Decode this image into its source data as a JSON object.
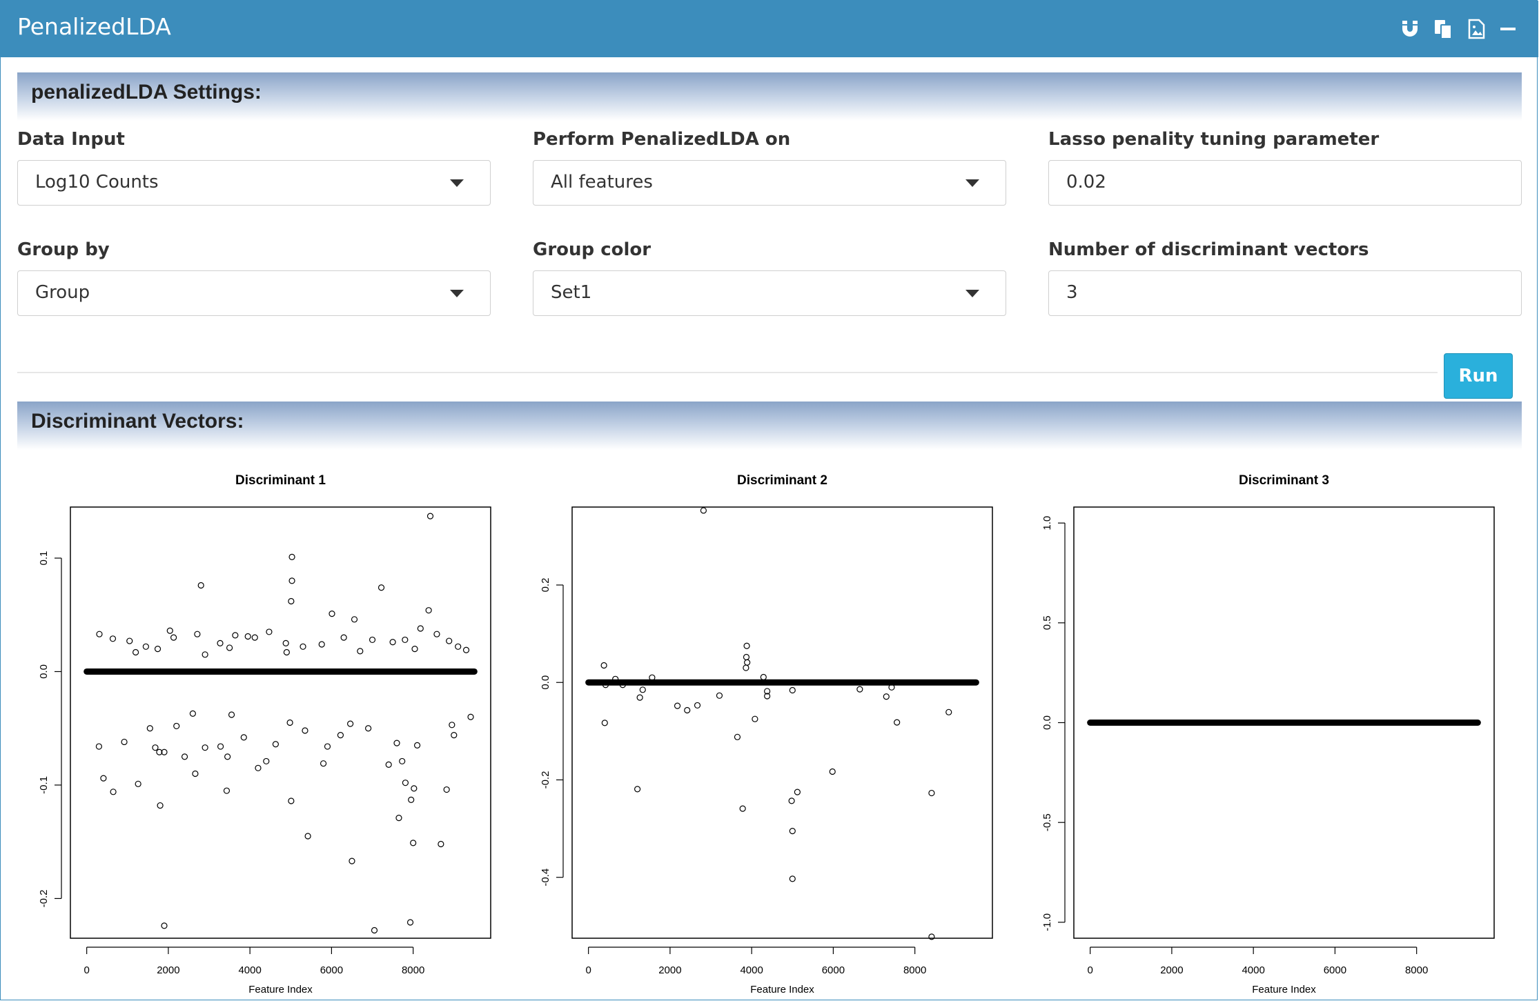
{
  "app": {
    "title": "PenalizedLDA"
  },
  "toolbar": {
    "icons": [
      "magnet-icon",
      "copy-icon",
      "image-icon",
      "minimize-icon"
    ]
  },
  "settings": {
    "heading": "penalizedLDA Settings:",
    "data_input": {
      "label": "Data Input",
      "value": "Log10 Counts"
    },
    "perform_on": {
      "label": "Perform PenalizedLDA on",
      "value": "All features"
    },
    "lasso": {
      "label": "Lasso penality tuning parameter",
      "value": "0.02"
    },
    "group_by": {
      "label": "Group by",
      "value": "Group"
    },
    "group_color": {
      "label": "Group color",
      "value": "Set1"
    },
    "num_vectors": {
      "label": "Number of discriminant vectors",
      "value": "3"
    },
    "run_label": "Run"
  },
  "results": {
    "heading": "Discriminant Vectors:"
  },
  "chart_data": [
    {
      "type": "scatter",
      "title": "Discriminant 1",
      "xlabel": "Feature Index",
      "ylabel": "",
      "xlim": [
        -400,
        9900
      ],
      "ylim": [
        -0.235,
        0.145
      ],
      "xticks": [
        0,
        2000,
        4000,
        6000,
        8000
      ],
      "yticks": [
        -0.2,
        -0.1,
        0.0,
        0.1
      ],
      "ytick_labels": [
        "-0.2",
        "-0.1",
        "0.0",
        "0.1"
      ],
      "baseline": {
        "x_range": [
          0,
          9500
        ],
        "y": 0
      },
      "outliers": [
        [
          8420,
          0.137
        ],
        [
          5030,
          0.101
        ],
        [
          5030,
          0.08
        ],
        [
          2800,
          0.076
        ],
        [
          7220,
          0.074
        ],
        [
          5010,
          0.062
        ],
        [
          8380,
          0.054
        ],
        [
          6010,
          0.051
        ],
        [
          6560,
          0.046
        ],
        [
          8180,
          0.038
        ],
        [
          5010,
          -0.114
        ],
        [
          5420,
          -0.145
        ],
        [
          6500,
          -0.167
        ],
        [
          1800,
          -0.118
        ],
        [
          7650,
          -0.129
        ],
        [
          7950,
          -0.113
        ],
        [
          8020,
          -0.103
        ],
        [
          8820,
          -0.104
        ],
        [
          8000,
          -0.151
        ],
        [
          8680,
          -0.152
        ],
        [
          1900,
          -0.224
        ],
        [
          7050,
          -0.228
        ],
        [
          7930,
          -0.221
        ],
        [
          3430,
          -0.105
        ],
        [
          650,
          -0.106
        ],
        [
          1260,
          -0.099
        ],
        [
          410,
          -0.094
        ],
        [
          2660,
          -0.09
        ],
        [
          2400,
          -0.075
        ],
        [
          3450,
          -0.075
        ],
        [
          7730,
          -0.079
        ],
        [
          7810,
          -0.098
        ],
        [
          1780,
          -0.071
        ],
        [
          1900,
          -0.071
        ],
        [
          7400,
          -0.082
        ],
        [
          5800,
          -0.081
        ],
        [
          4200,
          -0.085
        ],
        [
          4400,
          -0.079
        ],
        [
          3280,
          -0.066
        ],
        [
          300,
          -0.066
        ],
        [
          2900,
          -0.067
        ],
        [
          920,
          -0.062
        ],
        [
          1680,
          -0.067
        ],
        [
          5900,
          -0.066
        ],
        [
          4630,
          -0.064
        ],
        [
          6220,
          -0.056
        ],
        [
          6900,
          -0.05
        ],
        [
          7600,
          -0.063
        ],
        [
          8100,
          -0.065
        ],
        [
          9000,
          -0.056
        ],
        [
          9410,
          -0.04
        ],
        [
          8950,
          -0.047
        ],
        [
          6460,
          -0.046
        ],
        [
          4980,
          -0.045
        ],
        [
          5350,
          -0.052
        ],
        [
          2200,
          -0.048
        ],
        [
          1550,
          -0.05
        ],
        [
          2600,
          -0.037
        ],
        [
          3550,
          -0.038
        ],
        [
          3850,
          -0.058
        ],
        [
          1050,
          0.027
        ],
        [
          1450,
          0.022
        ],
        [
          2040,
          0.036
        ],
        [
          2130,
          0.03
        ],
        [
          3950,
          0.031
        ],
        [
          4120,
          0.03
        ],
        [
          4470,
          0.035
        ],
        [
          3640,
          0.032
        ],
        [
          2710,
          0.033
        ],
        [
          6300,
          0.03
        ],
        [
          7000,
          0.028
        ],
        [
          7500,
          0.026
        ],
        [
          7800,
          0.028
        ],
        [
          8580,
          0.033
        ],
        [
          8880,
          0.027
        ],
        [
          9300,
          0.019
        ],
        [
          310,
          0.033
        ],
        [
          640,
          0.029
        ],
        [
          4880,
          0.025
        ],
        [
          5300,
          0.022
        ],
        [
          5760,
          0.024
        ],
        [
          3270,
          0.025
        ],
        [
          1200,
          0.017
        ],
        [
          1740,
          0.02
        ],
        [
          2900,
          0.015
        ],
        [
          3500,
          0.021
        ],
        [
          4900,
          0.017
        ],
        [
          6700,
          0.018
        ],
        [
          8040,
          0.02
        ],
        [
          9100,
          0.022
        ]
      ]
    },
    {
      "type": "scatter",
      "title": "Discriminant 2",
      "xlabel": "Feature Index",
      "ylabel": "",
      "xlim": [
        -400,
        9900
      ],
      "ylim": [
        -0.525,
        0.36
      ],
      "xticks": [
        0,
        2000,
        4000,
        6000,
        8000
      ],
      "yticks": [
        -0.4,
        -0.2,
        0.0,
        0.2
      ],
      "ytick_labels": [
        "-0.4",
        "-0.2",
        "0.0",
        "0.2"
      ],
      "baseline": {
        "x_range": [
          0,
          9500
        ],
        "y": 0
      },
      "outliers": [
        [
          2820,
          0.353
        ],
        [
          3880,
          0.075
        ],
        [
          3870,
          0.052
        ],
        [
          3890,
          0.041
        ],
        [
          3860,
          0.03
        ],
        [
          4290,
          0.011
        ],
        [
          1560,
          0.01
        ],
        [
          660,
          0.007
        ],
        [
          380,
          0.035
        ],
        [
          840,
          -0.005
        ],
        [
          420,
          -0.005
        ],
        [
          1330,
          -0.015
        ],
        [
          1260,
          -0.031
        ],
        [
          4380,
          -0.018
        ],
        [
          4380,
          -0.028
        ],
        [
          2180,
          -0.048
        ],
        [
          2420,
          -0.057
        ],
        [
          2670,
          -0.047
        ],
        [
          3210,
          -0.027
        ],
        [
          3650,
          -0.112
        ],
        [
          4080,
          -0.075
        ],
        [
          400,
          -0.083
        ],
        [
          5000,
          -0.016
        ],
        [
          6650,
          -0.014
        ],
        [
          7300,
          -0.029
        ],
        [
          7430,
          -0.01
        ],
        [
          7560,
          -0.082
        ],
        [
          8830,
          -0.061
        ],
        [
          1200,
          -0.219
        ],
        [
          3780,
          -0.259
        ],
        [
          4980,
          -0.243
        ],
        [
          5120,
          -0.225
        ],
        [
          5000,
          -0.305
        ],
        [
          5980,
          -0.183
        ],
        [
          8410,
          -0.227
        ],
        [
          5000,
          -0.403
        ],
        [
          8410,
          -0.522
        ]
      ]
    },
    {
      "type": "scatter",
      "title": "Discriminant 3",
      "xlabel": "Feature Index",
      "ylabel": "",
      "xlim": [
        -400,
        9900
      ],
      "ylim": [
        -1.08,
        1.08
      ],
      "xticks": [
        0,
        2000,
        4000,
        6000,
        8000
      ],
      "yticks": [
        -1.0,
        -0.5,
        0.0,
        0.5,
        1.0
      ],
      "ytick_labels": [
        "-1.0",
        "-0.5",
        "0.0",
        "0.5",
        "1.0"
      ],
      "baseline": {
        "x_range": [
          0,
          9500
        ],
        "y": 0
      },
      "outliers": []
    }
  ]
}
